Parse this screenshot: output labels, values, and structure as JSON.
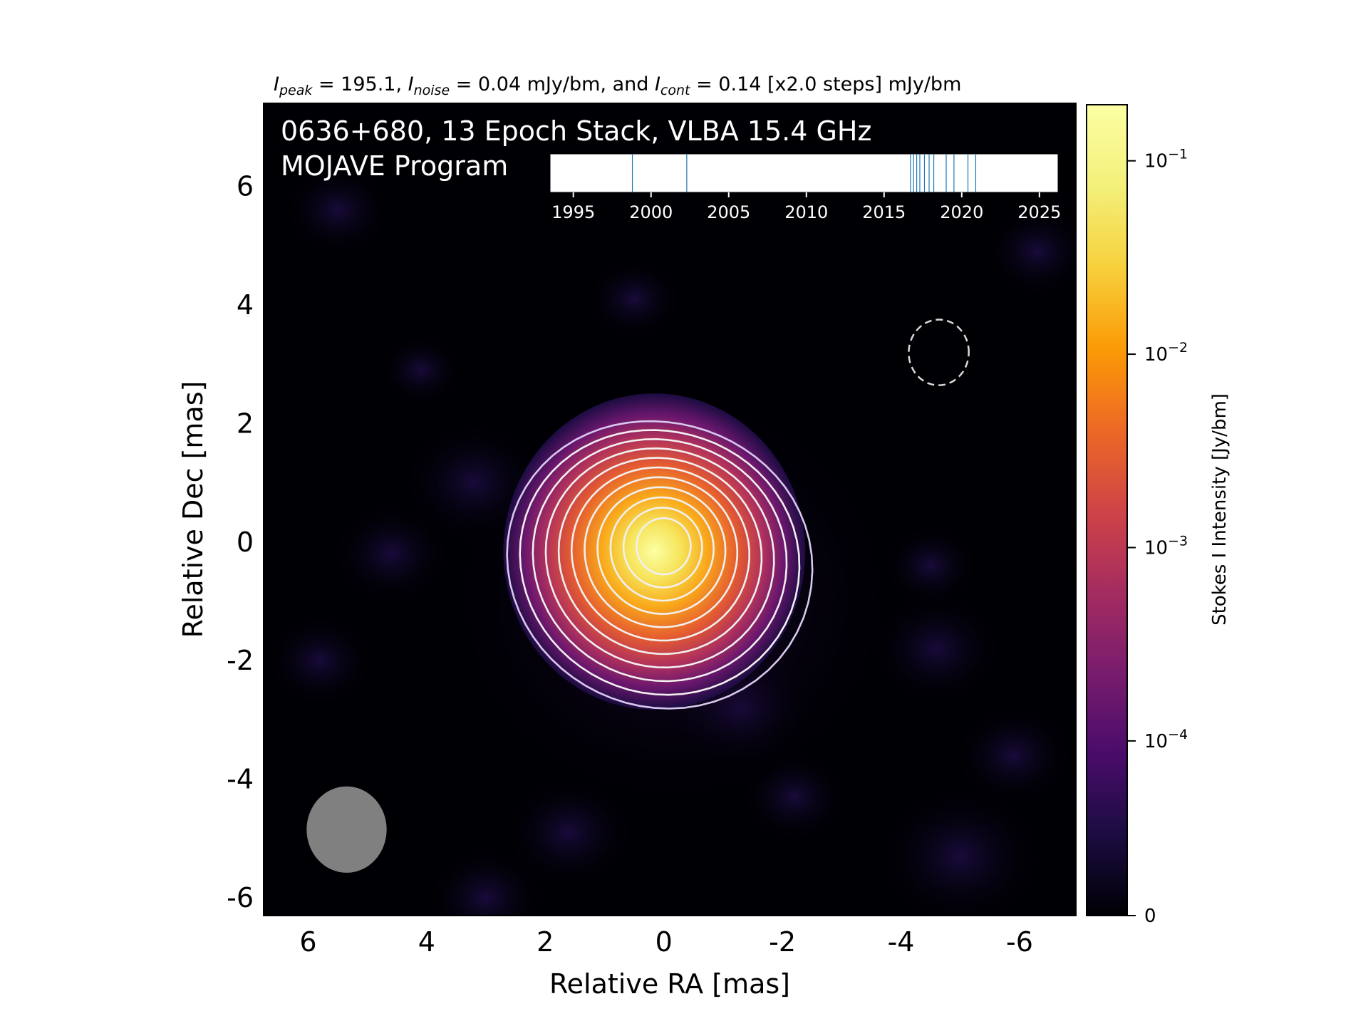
{
  "chart_data": {
    "type": "heatmap",
    "subtitle_parts": {
      "peak_symbol": "I",
      "peak_sub": "peak",
      "peak_value": " = 195.1, ",
      "noise_symbol": "I",
      "noise_sub": "noise",
      "noise_value": " = 0.04 mJy/bm, and ",
      "cont_symbol": "I",
      "cont_sub": "cont",
      "cont_value": " = 0.14 [x2.0 steps] mJy/bm"
    },
    "overlay_title_line1": "0636+680, 13 Epoch Stack, VLBA 15.4 GHz",
    "overlay_title_line2": "MOJAVE Program",
    "xlabel": "Relative RA [mas]",
    "ylabel": "Relative Dec [mas]",
    "xlim": [
      6.75,
      -6.95
    ],
    "ylim": [
      -6.3,
      7.4
    ],
    "x_ticks": [
      6,
      4,
      2,
      0,
      -2,
      -4,
      -6
    ],
    "y_ticks": [
      6,
      4,
      2,
      0,
      -2,
      -4,
      -6
    ],
    "colorbar": {
      "label": "Stokes I Intensity [Jy/bm]",
      "colormap": "inferno",
      "ticks": [
        {
          "base": "10",
          "exp": "−1",
          "value": 0.1
        },
        {
          "base": "10",
          "exp": "−2",
          "value": 0.01
        },
        {
          "base": "10",
          "exp": "−3",
          "value": 0.001
        },
        {
          "base": "10",
          "exp": "−4",
          "value": 0.0001
        },
        {
          "base": "0",
          "exp": "",
          "value": 0
        }
      ],
      "min": 0,
      "max": 0.195
    },
    "source": {
      "peak_position": [
        0.1,
        -0.1
      ],
      "peak_intensity_mJy": 195.1,
      "noise_mJy": 0.04,
      "lowest_contour_mJy": 0.14,
      "contour_step": 2.0,
      "contour_count": 11,
      "negative_contour_center": [
        -4.6,
        3.25
      ]
    },
    "beam": {
      "center": [
        5.35,
        -4.85
      ],
      "major_mas": 1.4,
      "minor_mas": 1.35
    },
    "epoch_inset": {
      "xlim": [
        1993.5,
        2026.2
      ],
      "ticks": [
        1995,
        2000,
        2005,
        2010,
        2015,
        2020,
        2025
      ],
      "epochs": [
        1998.8,
        2002.3,
        2016.7,
        2016.9,
        2017.1,
        2017.3,
        2017.6,
        2017.9,
        2018.2,
        2019.0,
        2019.5,
        2020.4,
        2020.9
      ]
    },
    "grid": false
  }
}
